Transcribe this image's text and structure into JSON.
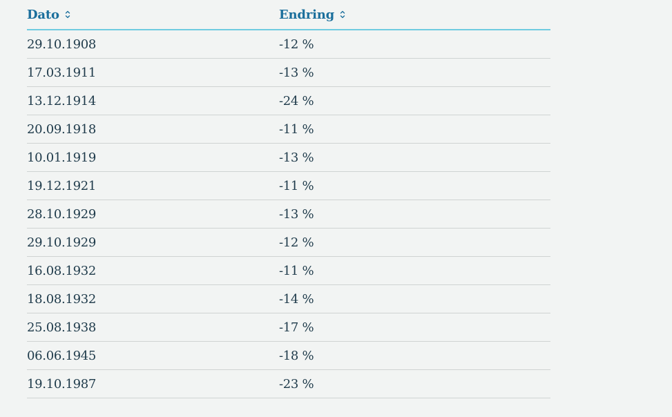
{
  "table": {
    "headers": [
      {
        "label": "Dato"
      },
      {
        "label": "Endring"
      }
    ],
    "rows": [
      {
        "date": "29.10.1908",
        "change": "-12 %"
      },
      {
        "date": "17.03.1911",
        "change": "-13 %"
      },
      {
        "date": "13.12.1914",
        "change": "-24 %"
      },
      {
        "date": "20.09.1918",
        "change": "-11 %"
      },
      {
        "date": "10.01.1919",
        "change": "-13 %"
      },
      {
        "date": "19.12.1921",
        "change": "-11 %"
      },
      {
        "date": "28.10.1929",
        "change": "-13 %"
      },
      {
        "date": "29.10.1929",
        "change": "-12 %"
      },
      {
        "date": "16.08.1932",
        "change": "-11 %"
      },
      {
        "date": "18.08.1932",
        "change": "-14 %"
      },
      {
        "date": "25.08.1938",
        "change": "-17 %"
      },
      {
        "date": "06.06.1945",
        "change": "-18 %"
      },
      {
        "date": "19.10.1987",
        "change": "-23 %"
      }
    ]
  },
  "icons": {
    "sort": "sort-updown-icon"
  },
  "colors": {
    "header_text": "#1b6f9c",
    "header_rule": "#6fcbe0",
    "body_text": "#1e3a4a",
    "row_rule": "#cfd3d2",
    "background": "#f2f4f3"
  }
}
